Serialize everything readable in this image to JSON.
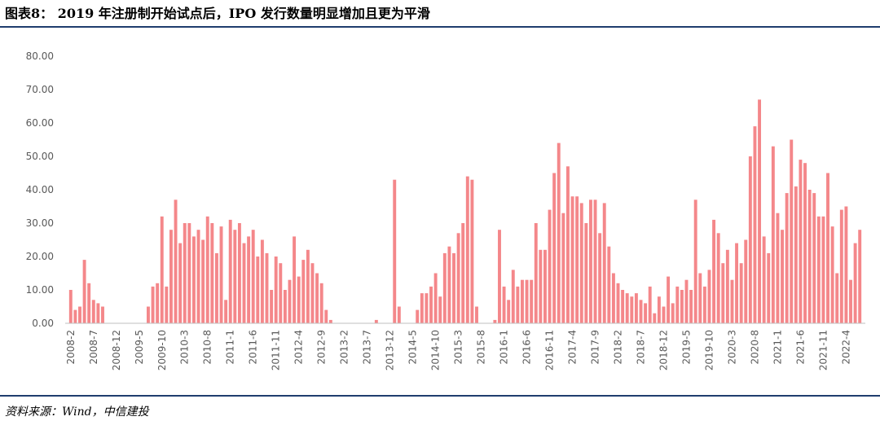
{
  "chart_data": {
    "type": "bar",
    "title": "图表8： 2019 年注册制开始试点后，IPO 发行数量明显增加且更为平滑",
    "categories": [
      "2008-2",
      null,
      null,
      null,
      null,
      "2008-7",
      null,
      null,
      null,
      null,
      "2008-12",
      null,
      null,
      null,
      null,
      "2009-5",
      null,
      null,
      null,
      null,
      "2009-10",
      null,
      null,
      null,
      null,
      "2010-3",
      null,
      null,
      null,
      null,
      "2010-8",
      null,
      null,
      null,
      null,
      "2011-1",
      null,
      null,
      null,
      null,
      "2011-6",
      null,
      null,
      null,
      null,
      "2011-11",
      null,
      null,
      null,
      null,
      "2012-4",
      null,
      null,
      null,
      null,
      "2012-9",
      null,
      null,
      null,
      null,
      "2013-2",
      null,
      null,
      null,
      null,
      "2013-7",
      null,
      null,
      null,
      null,
      "2013-12",
      null,
      null,
      null,
      null,
      "2014-5",
      null,
      null,
      null,
      null,
      "2014-10",
      null,
      null,
      null,
      null,
      "2015-3",
      null,
      null,
      null,
      null,
      "2015-8",
      null,
      null,
      null,
      null,
      "2016-1",
      null,
      null,
      null,
      null,
      "2016-6",
      null,
      null,
      null,
      null,
      "2016-11",
      null,
      null,
      null,
      null,
      "2017-4",
      null,
      null,
      null,
      null,
      "2017-9",
      null,
      null,
      null,
      null,
      "2018-2",
      null,
      null,
      null,
      null,
      "2018-7",
      null,
      null,
      null,
      null,
      "2018-12",
      null,
      null,
      null,
      null,
      "2019-5",
      null,
      null,
      null,
      null,
      "2019-10",
      null,
      null,
      null,
      null,
      "2020-3",
      null,
      null,
      null,
      null,
      "2020-8",
      null,
      null,
      null,
      null,
      "2021-1",
      null,
      null,
      null,
      null,
      "2021-6",
      null,
      null,
      null,
      null,
      "2021-11",
      null,
      null,
      null,
      null,
      "2022-4",
      null,
      null,
      null
    ],
    "values": [
      10,
      4,
      5,
      19,
      12,
      7,
      6,
      5,
      0,
      0,
      0,
      0,
      0,
      0,
      0,
      0,
      0,
      5,
      11,
      12,
      32,
      11,
      28,
      37,
      24,
      30,
      30,
      26,
      28,
      25,
      32,
      30,
      21,
      29,
      7,
      31,
      28,
      30,
      24,
      26,
      28,
      20,
      25,
      21,
      10,
      20,
      18,
      10,
      13,
      26,
      14,
      19,
      22,
      18,
      15,
      12,
      4,
      1,
      0,
      0,
      0,
      0,
      0,
      0,
      0,
      0,
      0,
      1,
      0,
      0,
      0,
      43,
      5,
      0,
      0,
      0,
      4,
      9,
      9,
      11,
      15,
      8,
      21,
      23,
      21,
      27,
      30,
      44,
      43,
      5,
      0,
      0,
      0,
      1,
      28,
      11,
      7,
      16,
      11,
      13,
      13,
      13,
      30,
      22,
      22,
      34,
      45,
      54,
      33,
      47,
      38,
      38,
      36,
      30,
      37,
      37,
      27,
      36,
      23,
      15,
      12,
      10,
      9,
      8,
      9,
      7,
      6,
      11,
      3,
      8,
      5,
      14,
      6,
      11,
      10,
      13,
      10,
      37,
      15,
      11,
      16,
      31,
      27,
      18,
      22,
      13,
      24,
      18,
      25,
      50,
      59,
      67,
      26,
      21,
      53,
      33,
      28,
      39,
      55,
      41,
      49,
      48,
      40,
      39,
      32,
      32,
      45,
      29,
      15,
      34,
      35,
      13,
      24,
      28
    ],
    "color": "#f4878a",
    "ylim": [
      0,
      80
    ],
    "yticks": [
      {
        "value": 0,
        "label": "0.00"
      },
      {
        "value": 10,
        "label": "10.00"
      },
      {
        "value": 20,
        "label": "20.00"
      },
      {
        "value": 30,
        "label": "30.00"
      },
      {
        "value": 40,
        "label": "40.00"
      },
      {
        "value": 50,
        "label": "50.00"
      },
      {
        "value": 60,
        "label": "60.00"
      },
      {
        "value": 70,
        "label": "70.00"
      },
      {
        "value": 80,
        "label": "80.00"
      }
    ],
    "grid": false,
    "source": "资料来源：Wind，中信建投"
  }
}
